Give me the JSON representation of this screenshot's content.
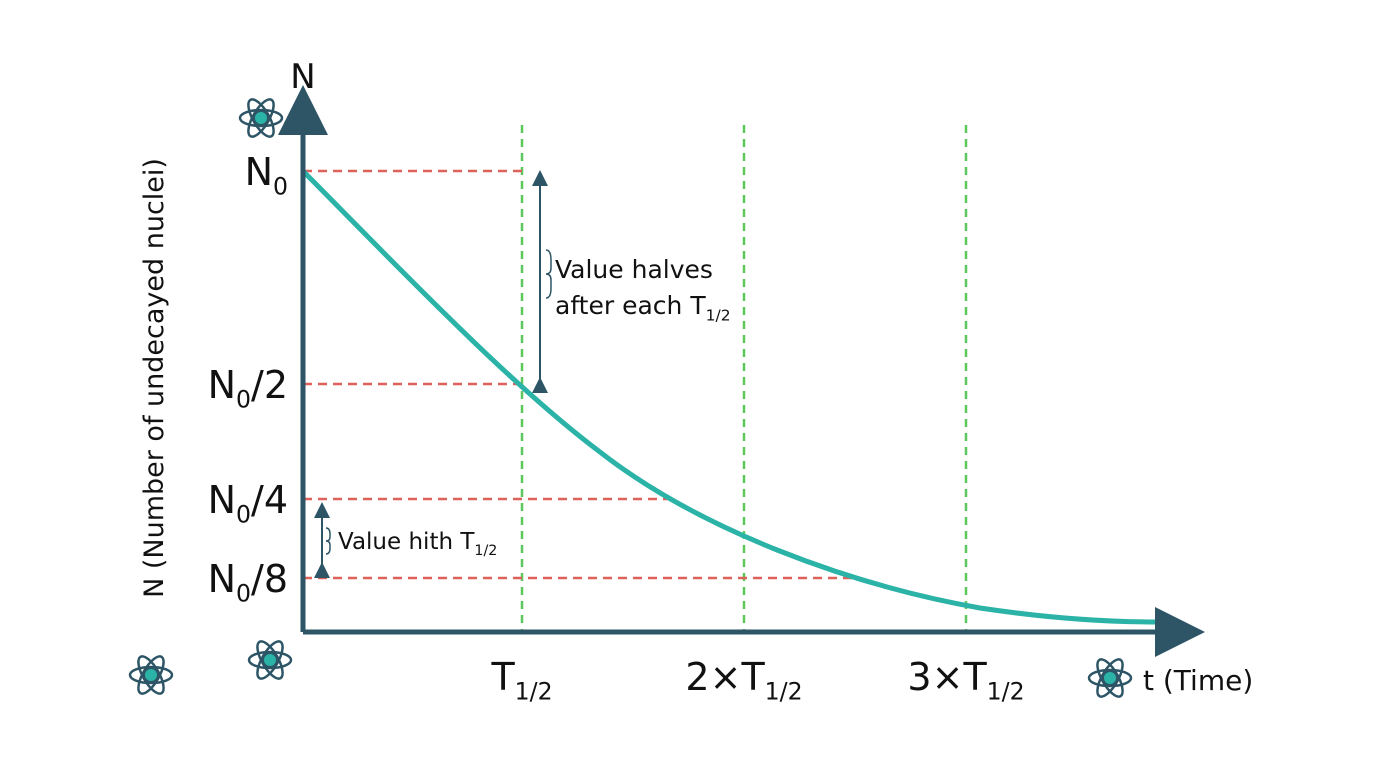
{
  "axis": {
    "y_symbol": "N",
    "y_title": "N (Number of undecayed nuclei)",
    "x_title": "t (Time)"
  },
  "y_labels": [
    [
      "N",
      "0"
    ],
    [
      "N",
      "0",
      "/2"
    ],
    [
      "N",
      "0",
      "/4"
    ],
    [
      "N",
      "0",
      "/8"
    ]
  ],
  "x_labels": [
    [
      "T",
      "1/2"
    ],
    [
      "2×T",
      "1/2"
    ],
    [
      "3×T",
      "1/2"
    ]
  ],
  "annotations": [
    {
      "lines": [
        [
          "Value halves"
        ],
        [
          "after each T",
          "1/2"
        ]
      ]
    },
    {
      "lines": [
        [
          "Value hith T",
          "1/2"
        ]
      ]
    }
  ]
}
